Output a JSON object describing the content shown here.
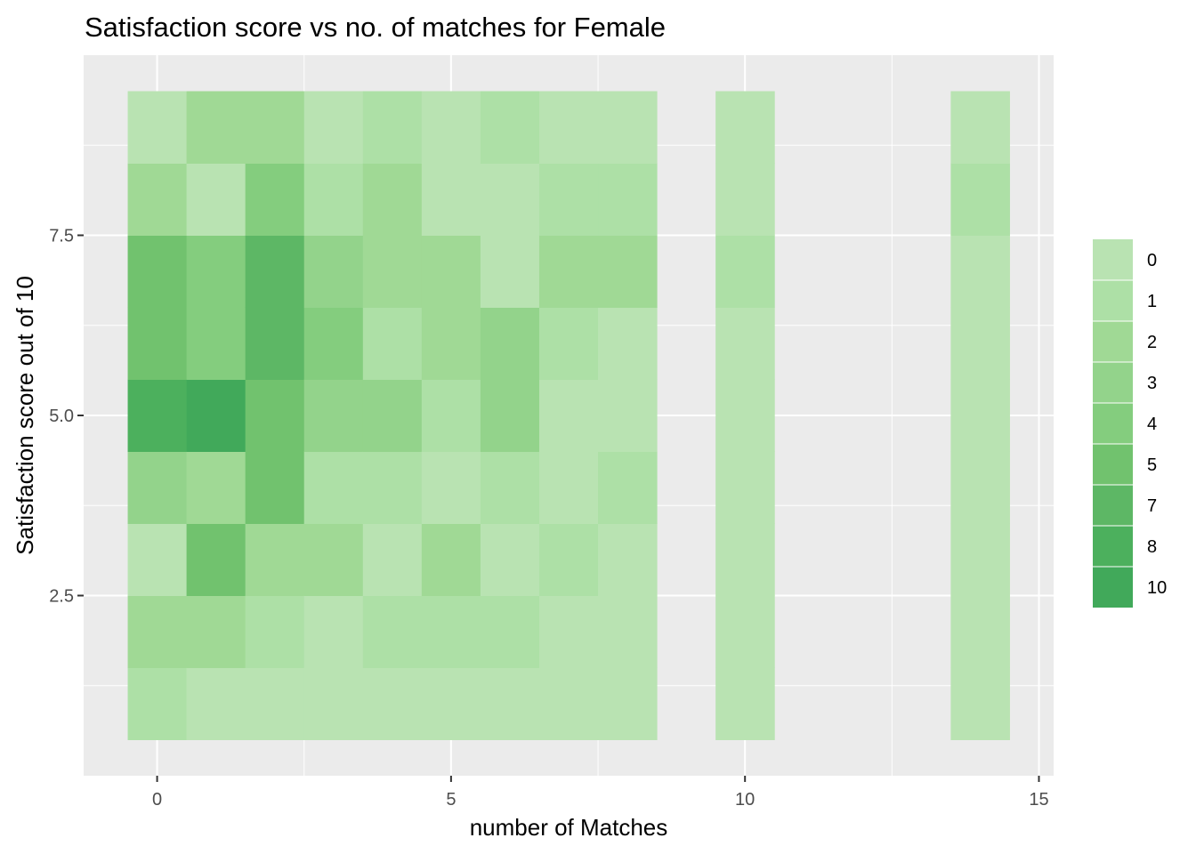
{
  "chart_data": {
    "type": "heatmap",
    "title": "Satisfaction score vs no. of matches for Female",
    "xlabel": "number of Matches",
    "ylabel": "Satisfaction score out of 10",
    "xlim": [
      -1.25,
      15.25
    ],
    "ylim": [
      0,
      10
    ],
    "x_ticks": [
      0,
      5,
      10,
      15
    ],
    "x_tick_labels": [
      "0",
      "5",
      "10",
      "15"
    ],
    "y_ticks": [
      2.5,
      5.0,
      7.5
    ],
    "y_tick_labels": [
      "2.5",
      "5.0",
      "7.5"
    ],
    "x_minor": [
      2.5,
      7.5,
      12.5
    ],
    "y_minor": [
      1.25,
      3.75,
      6.25,
      8.75
    ],
    "grid": true,
    "legend": {
      "position": "right",
      "labels": [
        "0",
        "1",
        "2",
        "3",
        "4",
        "5",
        "7",
        "8",
        "10"
      ],
      "colors": [
        "#b9e3b2",
        "#ade0a6",
        "#a0d995",
        "#93d38b",
        "#84cd7e",
        "#71c26e",
        "#5db765",
        "#4cb05d",
        "#41a95a"
      ]
    },
    "y_bins": [
      1,
      2,
      3,
      4,
      5,
      6,
      7,
      8,
      9
    ],
    "cells": [
      {
        "x": 0,
        "values": [
          1,
          2,
          0,
          3,
          8,
          5,
          6,
          2,
          0
        ]
      },
      {
        "x": 1,
        "values": [
          0,
          2,
          5,
          2,
          10,
          4,
          4,
          0,
          2
        ]
      },
      {
        "x": 2,
        "values": [
          0,
          1,
          2,
          5,
          5,
          7,
          7,
          4,
          2
        ]
      },
      {
        "x": 3,
        "values": [
          0,
          0,
          2,
          1,
          3,
          4,
          3,
          1,
          0
        ]
      },
      {
        "x": 4,
        "values": [
          0,
          1,
          0,
          1,
          3,
          1,
          2,
          2,
          1
        ]
      },
      {
        "x": 5,
        "values": [
          0,
          1,
          2,
          0,
          1,
          2,
          2,
          0,
          0
        ]
      },
      {
        "x": 6,
        "values": [
          0,
          1,
          0,
          1,
          3,
          3,
          0,
          0,
          1
        ]
      },
      {
        "x": 7,
        "values": [
          0,
          0,
          1,
          0,
          0,
          1,
          2,
          1,
          0
        ]
      },
      {
        "x": 8,
        "values": [
          0,
          0,
          0,
          1,
          0,
          0,
          2,
          1,
          0
        ]
      },
      {
        "x": 10,
        "values": [
          0,
          0,
          0,
          0,
          0,
          0,
          1,
          0,
          0
        ]
      },
      {
        "x": 14,
        "values": [
          0,
          0,
          0,
          0,
          0,
          0,
          0,
          1,
          0
        ]
      }
    ]
  }
}
